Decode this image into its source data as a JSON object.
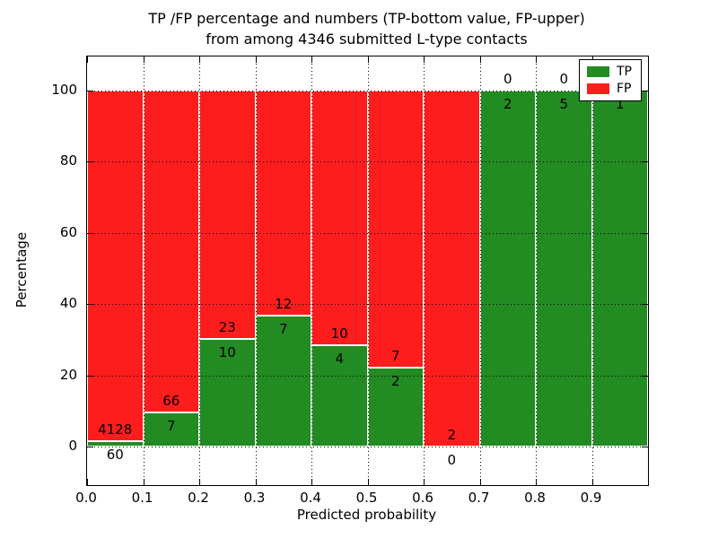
{
  "figure": {
    "title_line1": "TP /FP percentage and numbers (TP-bottom value, FP-upper)",
    "title_line2": "from among 4346 submitted L-type contacts",
    "xlabel": "Predicted probability",
    "ylabel": "Percentage"
  },
  "legend": {
    "position": "upper right",
    "items": [
      {
        "label": "TP",
        "color": "#228b22"
      },
      {
        "label": "FP",
        "color": "#fd1d1d"
      }
    ]
  },
  "chart_data": {
    "type": "bar",
    "stacked": true,
    "title": "TP /FP percentage and numbers (TP-bottom value, FP-upper) from among 4346 submitted L-type contacts",
    "xlabel": "Predicted probability",
    "ylabel": "Percentage",
    "total_submitted_contacts": 4346,
    "bin_edges": [
      0.0,
      0.1,
      0.2,
      0.3,
      0.4,
      0.5,
      0.6,
      0.7,
      0.8,
      0.9,
      1.0
    ],
    "x_tick_labels": [
      "0.0",
      "0.1",
      "0.2",
      "0.3",
      "0.4",
      "0.5",
      "0.6",
      "0.7",
      "0.8",
      "0.9"
    ],
    "y_ticks": [
      0,
      20,
      40,
      60,
      80,
      100
    ],
    "xlim": [
      0.0,
      1.0
    ],
    "ylim": [
      -11,
      110
    ],
    "grid": true,
    "grid_style": "dotted",
    "bar_edge_color": "#ffffff",
    "series": [
      {
        "name": "TP",
        "color": "#228b22",
        "counts": [
          60,
          7,
          10,
          7,
          4,
          2,
          0,
          2,
          5,
          1
        ]
      },
      {
        "name": "FP",
        "color": "#fd1d1d",
        "counts": [
          4128,
          66,
          23,
          12,
          10,
          7,
          2,
          0,
          0,
          0
        ]
      }
    ],
    "tp_percentages": [
      1.43,
      9.59,
      30.3,
      36.84,
      28.57,
      22.22,
      0.0,
      100.0,
      100.0,
      100.0
    ]
  }
}
